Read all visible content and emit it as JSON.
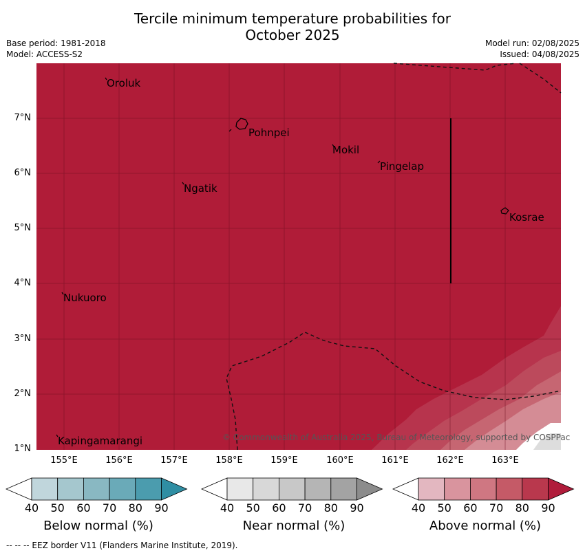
{
  "title_line1": "Tercile minimum temperature probabilities for",
  "title_line2": "October 2025",
  "base_period": "Base period: 1981-2018",
  "model": "Model: ACCESS-S2",
  "model_run": "Model run: 02/08/2025",
  "issued": "Issued: 04/08/2025",
  "places": {
    "oroluk": "Oroluk",
    "pohnpei": "Pohnpei",
    "mokil": "Mokil",
    "pingelap": "Pingelap",
    "ngatik": "Ngatik",
    "kosrae": "Kosrae",
    "nukuoro": "Nukuoro",
    "kapingamarangi": "Kapingamarangi"
  },
  "y_ticks": [
    "7°N",
    "6°N",
    "5°N",
    "4°N",
    "3°N",
    "2°N",
    "1°N"
  ],
  "x_ticks": [
    "155°E",
    "156°E",
    "157°E",
    "158°E",
    "159°E",
    "160°E",
    "161°E",
    "162°E",
    "163°E"
  ],
  "copyright": "© Commonwealth of Australia 2025, Bureau of Meteorology, supported by COSPPac",
  "colorbars": [
    {
      "title": "Below normal (%)",
      "ticks": [
        "40",
        "50",
        "60",
        "70",
        "80",
        "90"
      ],
      "colors": [
        "#c0d6dc",
        "#a5c7ce",
        "#89b8c2",
        "#6aaab8",
        "#4b9cae",
        "#2f8ea3"
      ]
    },
    {
      "title": "Near normal (%)",
      "ticks": [
        "40",
        "50",
        "60",
        "70",
        "80",
        "90"
      ],
      "colors": [
        "#e8e8e8",
        "#d8d8d8",
        "#c8c8c8",
        "#b5b5b5",
        "#a3a3a3",
        "#8c8c8c"
      ]
    },
    {
      "title": "Above normal (%)",
      "ticks": [
        "40",
        "50",
        "60",
        "70",
        "80",
        "90"
      ],
      "colors": [
        "#e3b7c0",
        "#d9949e",
        "#cf7782",
        "#c55a67",
        "#b9384d",
        "#b01c3b"
      ]
    }
  ],
  "map_color": "#b01c38",
  "footnote": "--  --  -- EEZ border V11 (Flanders Marine Institute, 2019)."
}
